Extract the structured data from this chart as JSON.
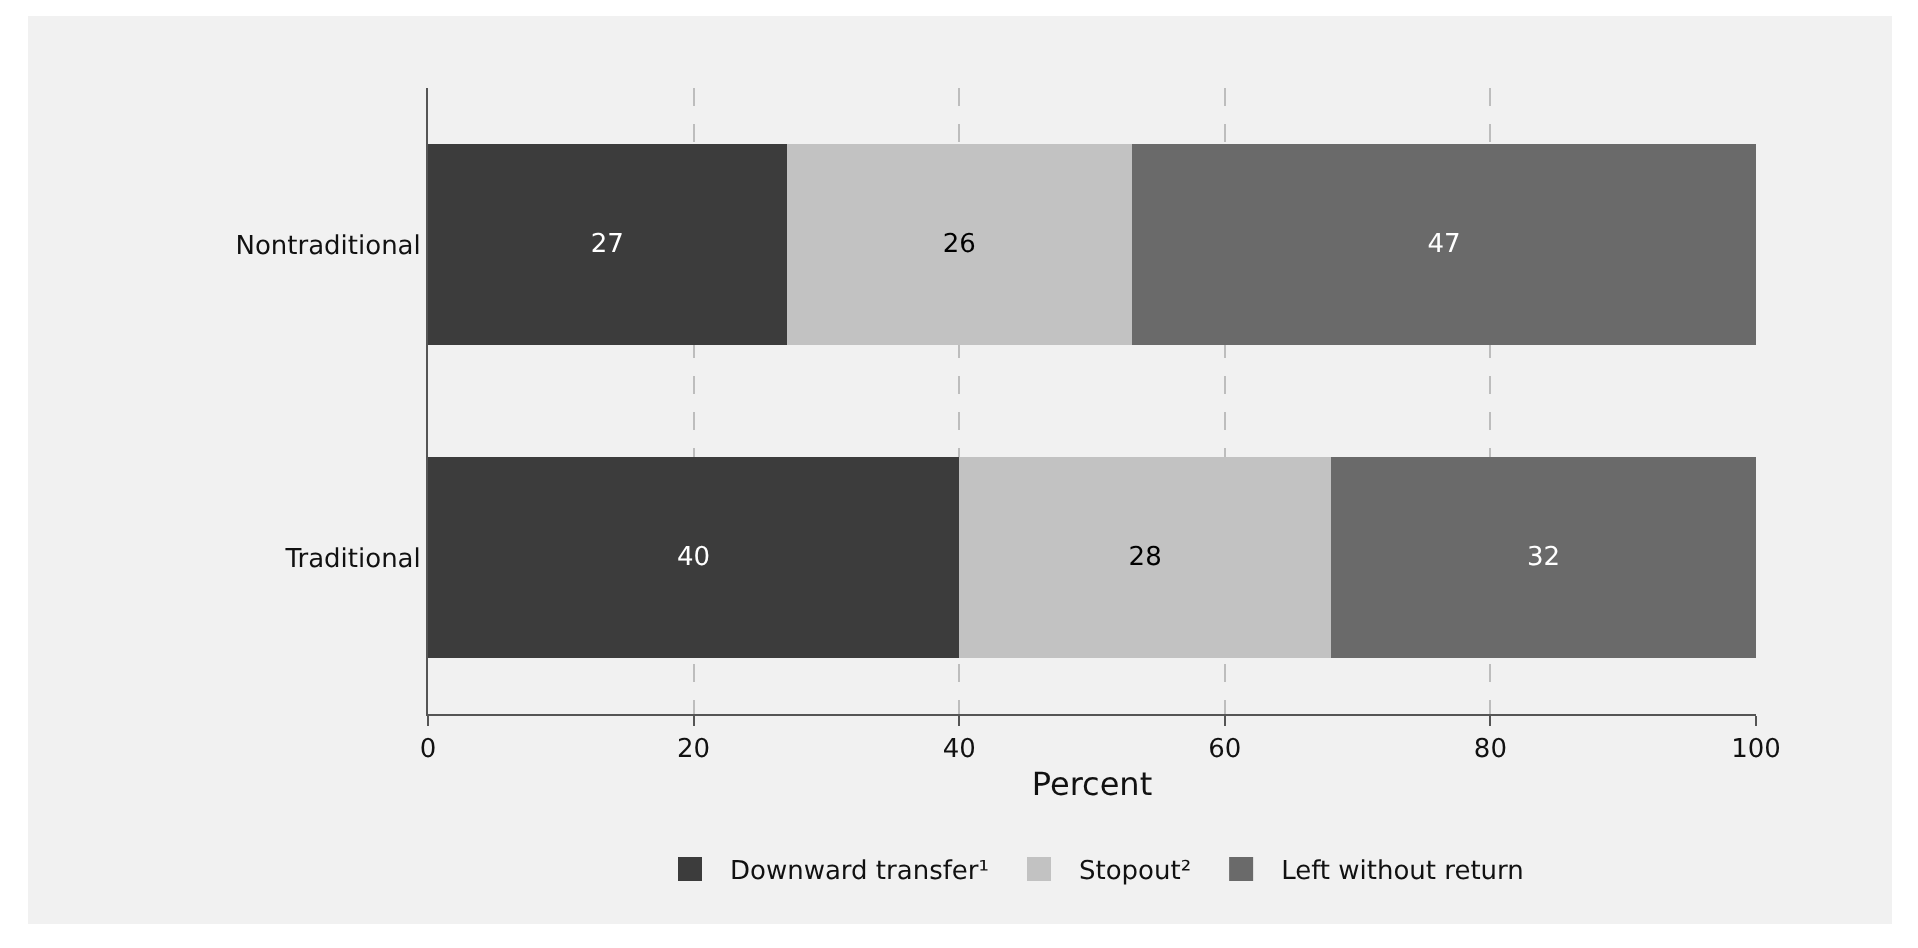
{
  "chart_data": {
    "type": "bar",
    "orientation": "horizontal",
    "stacked": true,
    "xlabel": "Percent",
    "categories": [
      "Nontraditional",
      "Traditional"
    ],
    "series": [
      {
        "name": "Downward transfer¹",
        "color": "#3c3c3c",
        "values": [
          27,
          40
        ]
      },
      {
        "name": "Stopout²",
        "color": "#c2c2c2",
        "values": [
          26,
          28
        ]
      },
      {
        "name": "Left without return",
        "color": "#6a6a6a",
        "values": [
          47,
          32
        ]
      }
    ],
    "xlim": [
      0,
      100
    ],
    "xticks": [
      0,
      20,
      40,
      60,
      80,
      100
    ],
    "grid": "x",
    "legend": "bottom",
    "data_labels": true
  }
}
